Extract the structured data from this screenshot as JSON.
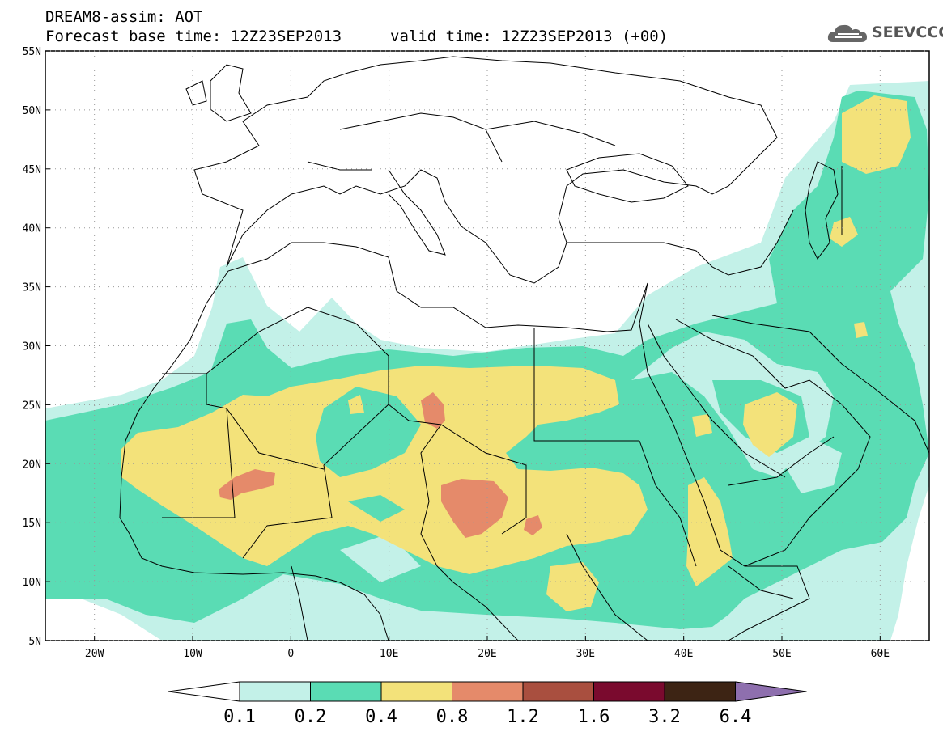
{
  "title": {
    "line1": "DREAM8-assim: AOT",
    "line2_base": "Forecast base time: 12Z23SEP2013",
    "line2_valid": "valid time: 12Z23SEP2013 (+00)"
  },
  "logo": {
    "text": "SEEVCCC",
    "icon": "cloud-icon"
  },
  "map": {
    "lon_range": [
      -25,
      65
    ],
    "lat_range": [
      5,
      55
    ],
    "lon_labels": [
      "20W",
      "10W",
      "0",
      "10E",
      "20E",
      "30E",
      "40E",
      "50E",
      "60E"
    ],
    "lat_labels": [
      "55N",
      "50N",
      "45N",
      "40N",
      "35N",
      "30N",
      "25N",
      "20N",
      "15N",
      "10N",
      "5N"
    ]
  },
  "colorbar": {
    "levels": [
      "0.1",
      "0.2",
      "0.4",
      "0.8",
      "1.2",
      "1.6",
      "3.2",
      "6.4"
    ],
    "colors": [
      "#ffffff",
      "#c3f1e8",
      "#5adcb4",
      "#f3e27a",
      "#e58a6a",
      "#a94f3f",
      "#7a0a2e",
      "#3d2414",
      "#8e6fae"
    ]
  }
}
